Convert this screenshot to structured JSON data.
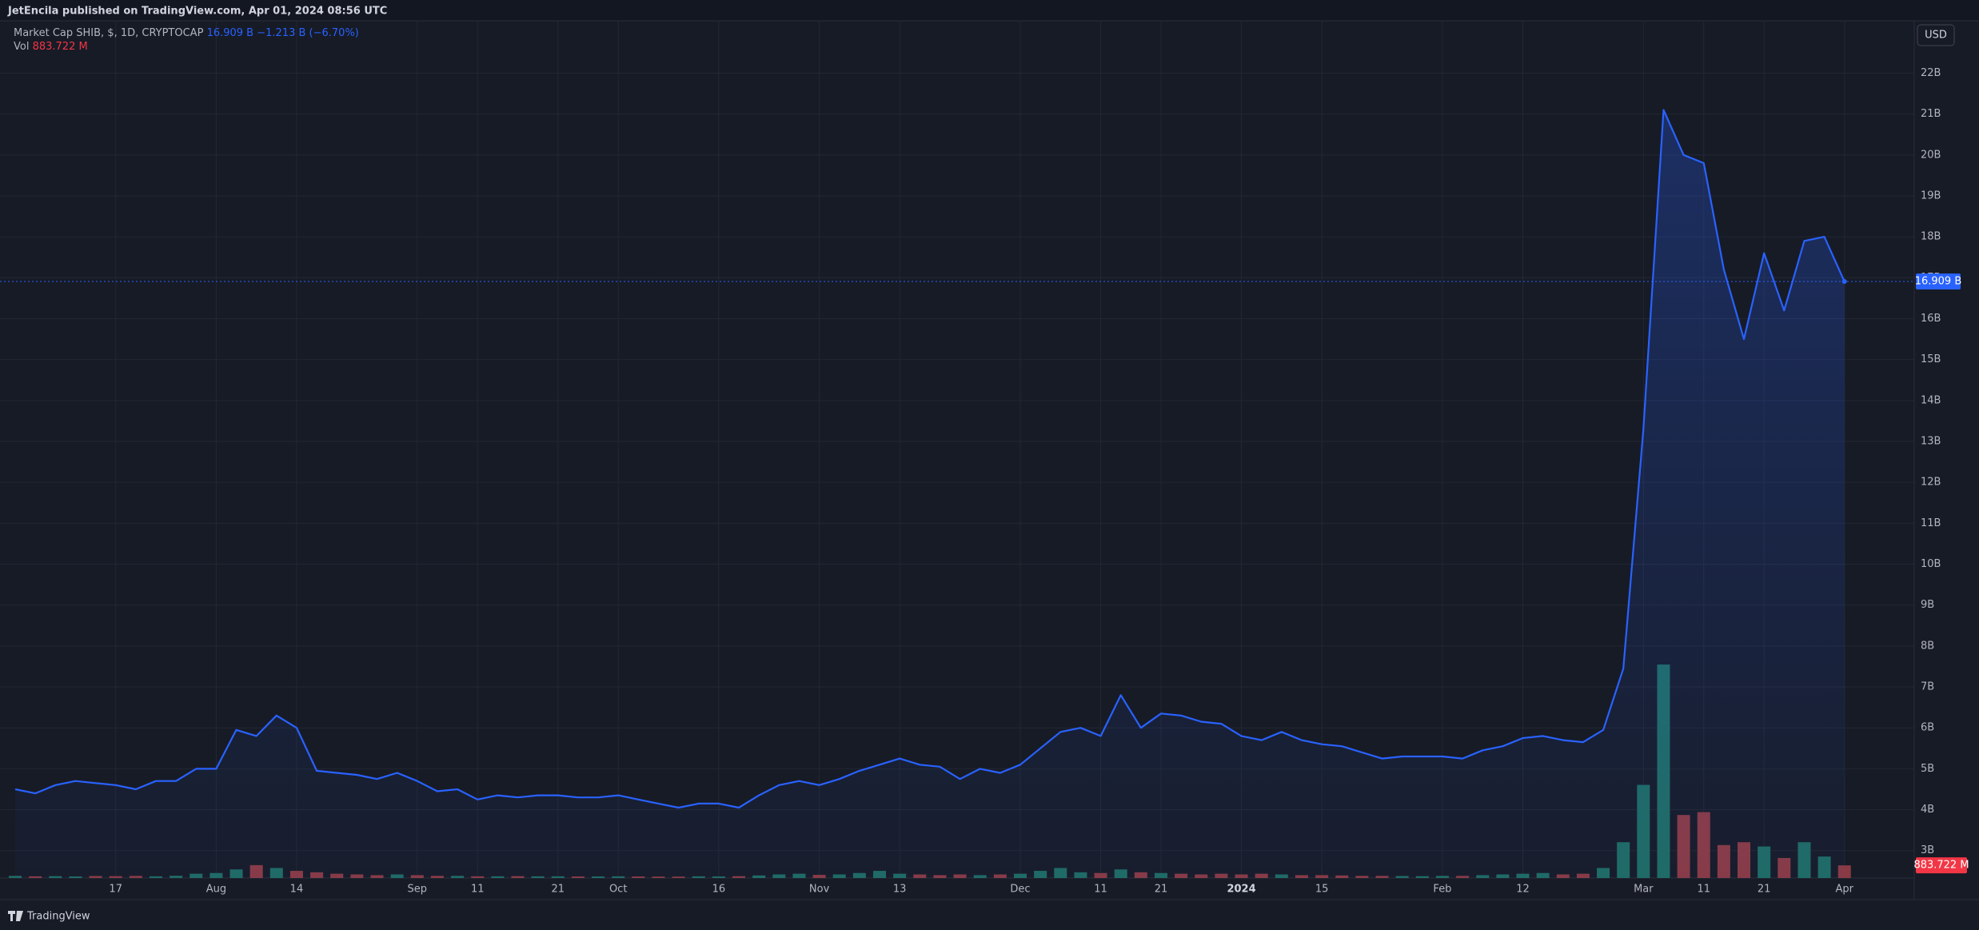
{
  "header": {
    "publisher": "JetEncila published on TradingView.com, Apr 01, 2024 08:56 UTC",
    "symbol": "Market Cap SHIB, $, 1D, CRYPTOCAP",
    "price": "16.909 B",
    "change": "−1.213 B (−6.70%)",
    "vol_label": "Vol",
    "volume": "883.722 M",
    "currency": "USD",
    "brand": "TradingView"
  },
  "chart_data": {
    "type": "line",
    "categories": [
      null,
      null,
      null,
      null,
      null,
      "17",
      null,
      null,
      null,
      null,
      "Aug",
      null,
      null,
      null,
      "14",
      null,
      null,
      null,
      null,
      null,
      "Sep",
      null,
      null,
      "11",
      null,
      null,
      null,
      "21",
      null,
      null,
      "Oct",
      null,
      null,
      null,
      null,
      "16",
      null,
      null,
      null,
      null,
      "Nov",
      null,
      null,
      null,
      "13",
      null,
      null,
      null,
      null,
      null,
      "Dec",
      null,
      null,
      null,
      "11",
      null,
      null,
      "21",
      null,
      null,
      null,
      "2024",
      null,
      null,
      null,
      "15",
      null,
      null,
      null,
      null,
      null,
      "Feb",
      null,
      null,
      null,
      "12",
      null,
      null,
      null,
      null,
      null,
      "Mar",
      null,
      null,
      "11",
      null,
      null,
      "21",
      null,
      null,
      null,
      "Apr"
    ],
    "values": [
      4.5,
      4.4,
      4.6,
      4.7,
      4.65,
      4.6,
      4.5,
      4.7,
      4.7,
      5.0,
      5.0,
      5.95,
      5.8,
      6.3,
      6.0,
      4.95,
      4.9,
      4.85,
      4.75,
      4.9,
      4.7,
      4.45,
      4.5,
      4.25,
      4.35,
      4.3,
      4.35,
      4.35,
      4.3,
      4.3,
      4.35,
      4.25,
      4.15,
      4.05,
      4.15,
      4.15,
      4.05,
      4.35,
      4.6,
      4.7,
      4.6,
      4.75,
      4.95,
      5.1,
      5.25,
      5.1,
      5.05,
      4.75,
      5.0,
      4.9,
      5.1,
      5.5,
      5.9,
      6.0,
      5.8,
      6.8,
      6.0,
      6.35,
      6.3,
      6.15,
      6.1,
      5.8,
      5.7,
      5.9,
      5.7,
      5.6,
      5.55,
      5.4,
      5.25,
      5.3,
      5.3,
      5.3,
      5.25,
      5.45,
      5.55,
      5.75,
      5.8,
      5.7,
      5.65,
      5.95,
      7.45,
      13.3,
      21.1,
      20.0,
      19.8,
      17.2,
      15.5,
      17.6,
      16.2,
      17.9,
      18.0,
      16.909
    ],
    "color": "#2962ff",
    "volume": {
      "values": [
        150,
        120,
        130,
        110,
        140,
        130,
        150,
        120,
        160,
        300,
        350,
        600,
        900,
        700,
        500,
        400,
        300,
        250,
        200,
        250,
        200,
        150,
        150,
        120,
        120,
        130,
        120,
        120,
        110,
        110,
        120,
        110,
        100,
        100,
        120,
        110,
        130,
        180,
        250,
        300,
        220,
        250,
        350,
        500,
        300,
        250,
        200,
        250,
        200,
        250,
        300,
        500,
        700,
        400,
        350,
        600,
        400,
        350,
        300,
        250,
        300,
        250,
        300,
        250,
        200,
        200,
        180,
        150,
        150,
        140,
        130,
        150,
        150,
        200,
        250,
        300,
        350,
        250,
        300,
        700,
        2500,
        6500,
        14900,
        4400,
        4600,
        2300,
        2500,
        2200,
        1400,
        2500,
        1500,
        883.722
      ],
      "up_color": "#1f6b63",
      "down_color": "#8a3a43"
    },
    "ylim": [
      2.33,
      23.24
    ],
    "yticks": [
      {
        "value": 3,
        "label": "3B"
      },
      {
        "value": 4,
        "label": "4B"
      },
      {
        "value": 5,
        "label": "5B"
      },
      {
        "value": 6,
        "label": "6B"
      },
      {
        "value": 7,
        "label": "7B"
      },
      {
        "value": 8,
        "label": "8B"
      },
      {
        "value": 9,
        "label": "9B"
      },
      {
        "value": 10,
        "label": "10B"
      },
      {
        "value": 11,
        "label": "11B"
      },
      {
        "value": 12,
        "label": "12B"
      },
      {
        "value": 13,
        "label": "13B"
      },
      {
        "value": 14,
        "label": "14B"
      },
      {
        "value": 15,
        "label": "15B"
      },
      {
        "value": 16,
        "label": "16B"
      },
      {
        "value": 17,
        "label": "17B"
      },
      {
        "value": 18,
        "label": "18B"
      },
      {
        "value": 19,
        "label": "19B"
      },
      {
        "value": 20,
        "label": "20B"
      },
      {
        "value": 21,
        "label": "21B"
      },
      {
        "value": 22,
        "label": "22B"
      }
    ],
    "grid": true
  }
}
